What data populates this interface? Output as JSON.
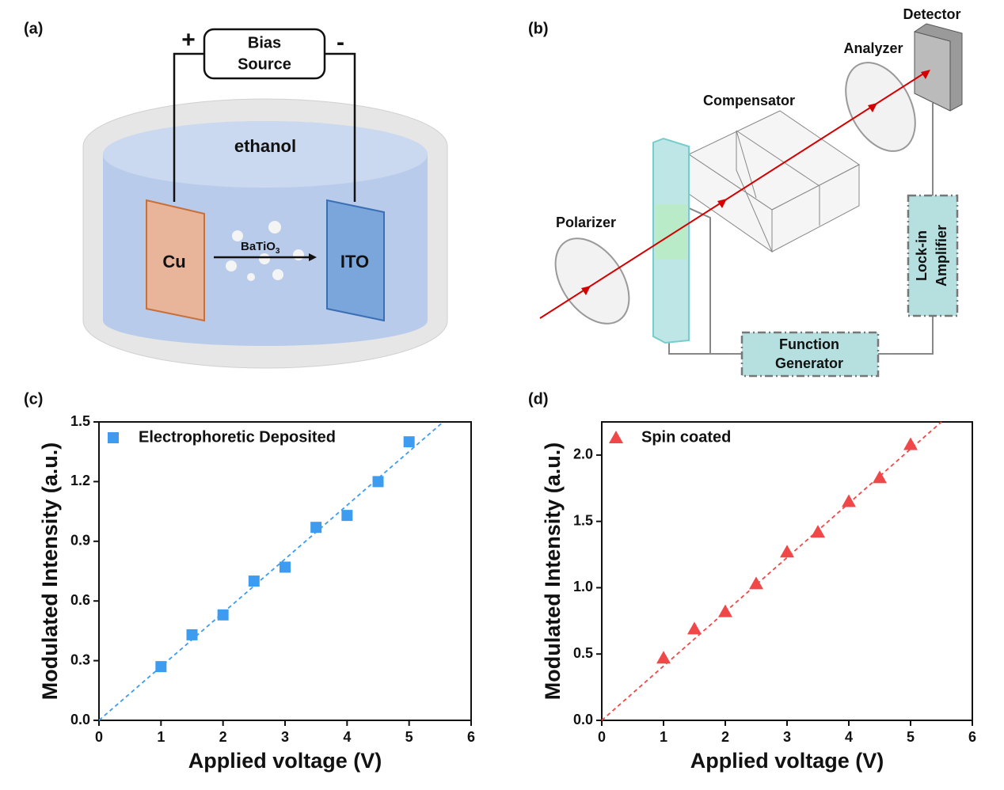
{
  "diagram_a": {
    "panel_label": "(a)",
    "bias_source": [
      "Bias",
      "Source"
    ],
    "plus": "+",
    "minus": "-",
    "solvent": "ethanol",
    "cathode": "Cu",
    "anode": "ITO",
    "particle": {
      "base": "BaTiO",
      "subscript": "3"
    }
  },
  "diagram_b": {
    "panel_label": "(b)",
    "detector": "Detector",
    "analyzer": "Analyzer",
    "compensator": "Compensator",
    "polarizer": "Polarizer",
    "lock_in": [
      "Lock-in",
      "Amplifier"
    ],
    "function_generator": [
      "Function",
      "Generator"
    ]
  },
  "chart_data": [
    {
      "type": "scatter",
      "panel_label": "(c)",
      "xlabel": "Applied voltage (V)",
      "ylabel": "Modulated Intensity (a.u.)",
      "legend": "upper left",
      "x": [
        1,
        1.5,
        2,
        2.5,
        3,
        3.5,
        4,
        4.5,
        5
      ],
      "series": [
        {
          "name": "Electrophoretic Deposited",
          "color": "#3d9cf0",
          "marker": "square",
          "values": [
            0.27,
            0.43,
            0.53,
            0.7,
            0.77,
            0.97,
            1.03,
            1.2,
            1.4
          ]
        }
      ],
      "fit": {
        "x": [
          0,
          5.55
        ],
        "values": [
          0,
          1.5
        ]
      },
      "xlim": [
        0,
        6
      ],
      "xticks": [
        0,
        1,
        2,
        3,
        4,
        5,
        6
      ],
      "ylim": [
        0,
        1.5
      ],
      "yticks": [
        {
          "value": 0,
          "label": "0.0"
        },
        0.3,
        0.6,
        0.9,
        1.2,
        1.5
      ]
    },
    {
      "type": "scatter",
      "panel_label": "(d)",
      "xlabel": "Applied voltage (V)",
      "ylabel": "Modulated Intensity (a.u.)",
      "legend": "upper left",
      "x": [
        1,
        1.5,
        2,
        2.5,
        3,
        3.5,
        4,
        4.5,
        5
      ],
      "series": [
        {
          "name": "Spin coated",
          "color": "#f04848",
          "marker": "triangle",
          "values": [
            0.47,
            0.69,
            0.82,
            1.03,
            1.27,
            1.42,
            1.65,
            1.83,
            2.08
          ]
        }
      ],
      "fit": {
        "x": [
          0,
          5.5
        ],
        "values": [
          0,
          2.25
        ]
      },
      "xlim": [
        0,
        6
      ],
      "xticks": [
        0,
        1,
        2,
        3,
        4,
        5,
        6
      ],
      "ylim": [
        0,
        2.25
      ],
      "yticks": [
        {
          "value": 0,
          "label": "0.0"
        },
        0.5,
        {
          "value": 1,
          "label": "1.0"
        },
        1.5,
        {
          "value": 2,
          "label": "2.0"
        }
      ]
    }
  ]
}
